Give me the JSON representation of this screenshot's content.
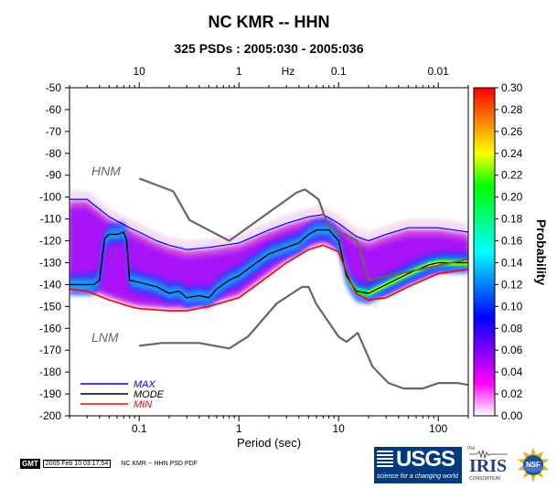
{
  "chart_data": {
    "type": "heatmap",
    "title": "NC KMR -- HHN",
    "subtitle": "325 PSDs : 2005:030 - 2005:036",
    "xlabel": "Period (sec)",
    "x_top_label": "Hz",
    "ylabel": "",
    "colorbar_label": "Probability",
    "xscale": "log",
    "xlim": [
      0.02,
      200
    ],
    "ylim": [
      -200,
      -50
    ],
    "x_ticks": [
      {
        "value": 0.1,
        "label": "0.1"
      },
      {
        "value": 1,
        "label": "1"
      },
      {
        "value": 10,
        "label": "10"
      },
      {
        "value": 100,
        "label": "100"
      }
    ],
    "x_top_ticks": [
      {
        "value": 0.1,
        "label": "10"
      },
      {
        "value": 1,
        "label": "1"
      },
      {
        "value": 10,
        "label": "0.1"
      },
      {
        "value": 100,
        "label": "0.01"
      }
    ],
    "y_ticks": [
      -50,
      -60,
      -70,
      -80,
      -90,
      -100,
      -110,
      -120,
      -130,
      -140,
      -150,
      -160,
      -170,
      -180,
      -190,
      -200
    ],
    "colorbar_ticks": [
      "0.30",
      "0.28",
      "0.26",
      "0.24",
      "0.22",
      "0.20",
      "0.18",
      "0.16",
      "0.14",
      "0.12",
      "0.10",
      "0.08",
      "0.06",
      "0.04",
      "0.02",
      "0.00"
    ],
    "colorbar_range": [
      0,
      0.3
    ],
    "colorbar_colors": [
      "#ffffff",
      "#ff00ff",
      "#7f00ff",
      "#0000ff",
      "#0080ff",
      "#00ffff",
      "#00ff80",
      "#00ff00",
      "#ffff00",
      "#ff8000",
      "#ff0000"
    ],
    "series": [
      {
        "name": "MAX",
        "color": "#0000ff",
        "points": [
          [
            0.02,
            -101
          ],
          [
            0.03,
            -101
          ],
          [
            0.05,
            -109
          ],
          [
            0.08,
            -114
          ],
          [
            0.1,
            -116
          ],
          [
            0.15,
            -120
          ],
          [
            0.2,
            -122
          ],
          [
            0.3,
            -124
          ],
          [
            0.5,
            -123
          ],
          [
            1,
            -121
          ],
          [
            2,
            -115
          ],
          [
            3,
            -112
          ],
          [
            5,
            -109
          ],
          [
            7,
            -108
          ],
          [
            10,
            -112
          ],
          [
            15,
            -118
          ],
          [
            20,
            -120
          ],
          [
            30,
            -117
          ],
          [
            50,
            -114
          ],
          [
            100,
            -114
          ],
          [
            200,
            -116
          ]
        ]
      },
      {
        "name": "MODE",
        "color": "#000000",
        "points": [
          [
            0.02,
            -140
          ],
          [
            0.035,
            -140
          ],
          [
            0.04,
            -138
          ],
          [
            0.045,
            -119
          ],
          [
            0.05,
            -117
          ],
          [
            0.06,
            -117
          ],
          [
            0.07,
            -116
          ],
          [
            0.075,
            -120
          ],
          [
            0.08,
            -138
          ],
          [
            0.1,
            -139
          ],
          [
            0.15,
            -141
          ],
          [
            0.2,
            -144
          ],
          [
            0.25,
            -143
          ],
          [
            0.3,
            -146
          ],
          [
            0.4,
            -145
          ],
          [
            0.5,
            -146
          ],
          [
            0.6,
            -142
          ],
          [
            0.8,
            -138
          ],
          [
            1,
            -136
          ],
          [
            1.5,
            -130
          ],
          [
            2,
            -126
          ],
          [
            3,
            -123
          ],
          [
            4,
            -121
          ],
          [
            5,
            -117
          ],
          [
            6,
            -115
          ],
          [
            7,
            -115
          ],
          [
            8,
            -115
          ],
          [
            10,
            -120
          ],
          [
            12,
            -136
          ],
          [
            15,
            -143
          ],
          [
            20,
            -144
          ],
          [
            30,
            -140
          ],
          [
            50,
            -135
          ],
          [
            80,
            -131
          ],
          [
            100,
            -130
          ],
          [
            200,
            -130
          ]
        ]
      },
      {
        "name": "MIN",
        "color": "#ff0000",
        "points": [
          [
            0.02,
            -142
          ],
          [
            0.03,
            -143
          ],
          [
            0.05,
            -147
          ],
          [
            0.08,
            -150
          ],
          [
            0.1,
            -151
          ],
          [
            0.2,
            -152
          ],
          [
            0.3,
            -152
          ],
          [
            0.5,
            -150
          ],
          [
            1,
            -146
          ],
          [
            2,
            -136
          ],
          [
            3,
            -130
          ],
          [
            5,
            -124
          ],
          [
            7,
            -122
          ],
          [
            10,
            -125
          ],
          [
            13,
            -138
          ],
          [
            15,
            -144
          ],
          [
            20,
            -147
          ],
          [
            30,
            -146
          ],
          [
            50,
            -141
          ],
          [
            100,
            -135
          ],
          [
            200,
            -133
          ]
        ]
      },
      {
        "name": "HNM",
        "color": "#666666",
        "points": [
          [
            0.1,
            -91.5
          ],
          [
            0.22,
            -97.4
          ],
          [
            0.32,
            -110.5
          ],
          [
            0.8,
            -120
          ],
          [
            3.8,
            -97.9
          ],
          [
            4.6,
            -96.5
          ],
          [
            6.3,
            -101
          ],
          [
            7.9,
            -113.5
          ],
          [
            15.4,
            -120
          ],
          [
            20,
            -138
          ],
          [
            354.8,
            -126
          ]
        ]
      },
      {
        "name": "LNM",
        "color": "#666666",
        "points": [
          [
            0.1,
            -168
          ],
          [
            0.17,
            -166.7
          ],
          [
            0.4,
            -166.7
          ],
          [
            0.8,
            -169.2
          ],
          [
            1.24,
            -163.7
          ],
          [
            2.4,
            -148.6
          ],
          [
            4.3,
            -141.1
          ],
          [
            5,
            -141.1
          ],
          [
            6,
            -149
          ],
          [
            10,
            -163.8
          ],
          [
            12,
            -166.2
          ],
          [
            15.6,
            -162.1
          ],
          [
            21.9,
            -177.5
          ],
          [
            31.6,
            -185
          ],
          [
            45,
            -187.5
          ],
          [
            70,
            -187.5
          ],
          [
            101,
            -185
          ],
          [
            154,
            -185
          ],
          [
            328,
            -187.5
          ]
        ]
      }
    ],
    "legend": {
      "position": "bottom-left",
      "entries": [
        "MAX",
        "MODE",
        "MIN"
      ]
    },
    "annotations": [
      "HNM",
      "LNM"
    ]
  },
  "footer": {
    "gmt_label": "GMT",
    "timestamp": "2005 Feb 10 03:17:54",
    "filename": "NC KMR -- HHN PSD PDF"
  },
  "logos": {
    "usgs_text": "USGS",
    "usgs_tagline": "science for a changing world",
    "iris_text": "IRIS",
    "iris_sub": "CONSORTIUM",
    "iris_small": "the",
    "nsf_text": "NSF"
  }
}
